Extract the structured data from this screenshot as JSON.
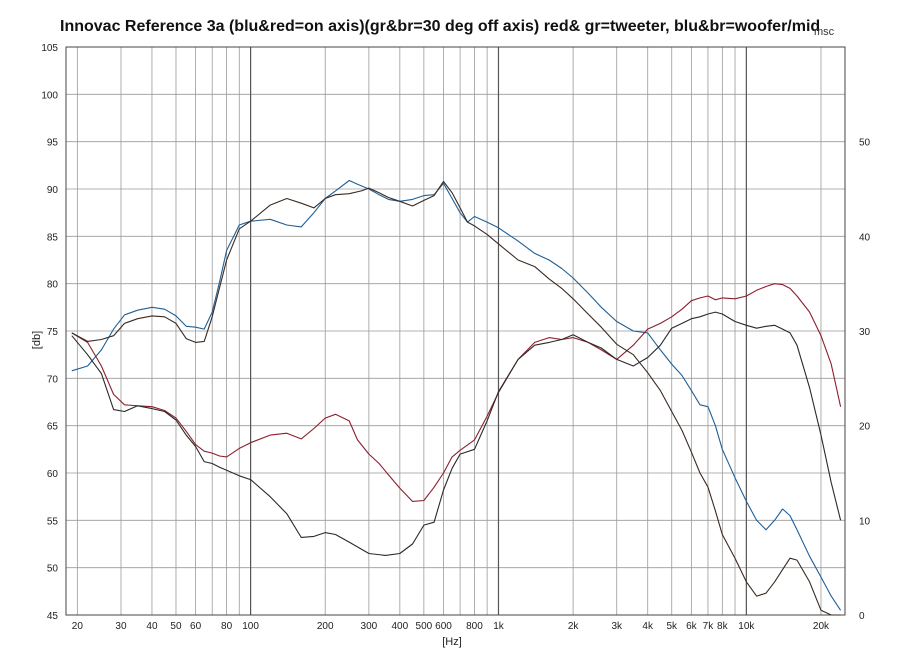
{
  "chart_data": {
    "type": "line",
    "title": "Innovac Reference 3a (blu&red=on axis)(gr&br=30 deg off axis) red& gr=tweeter, blu&br=woofer/mid",
    "title_tail": "msc",
    "xlabel": "[Hz]",
    "ylabel": "[db]",
    "x_scale": "log",
    "xlim": [
      18,
      25000
    ],
    "ylim": [
      45,
      105
    ],
    "y2lim": [
      0,
      60
    ],
    "grid": true,
    "y_ticks": [
      105,
      100,
      95,
      90,
      85,
      80,
      75,
      70,
      65,
      60,
      55,
      50,
      45
    ],
    "y2_ticks": [
      50,
      40,
      30,
      20,
      10,
      0
    ],
    "x_tick_values": [
      20,
      30,
      40,
      50,
      60,
      80,
      100,
      200,
      300,
      400,
      500,
      600,
      800,
      1000,
      2000,
      3000,
      4000,
      5000,
      6000,
      7000,
      8000,
      10000,
      20000
    ],
    "x_tick_labels": [
      "20",
      "30",
      "40",
      "50",
      "60",
      "80",
      "100",
      "200",
      "300",
      "400",
      "500",
      "600",
      "800",
      "1k",
      "2k",
      "3k",
      "4k",
      "5k",
      "6k",
      "7k",
      "8k",
      "10k",
      "20k"
    ],
    "colors": {
      "blue": "#1f5f96",
      "red": "#8c1f2c",
      "green": "#2a2a2a",
      "brown": "#3a2a22",
      "grid": "#9a9a9a"
    },
    "series": [
      {
        "color": "blue",
        "x": [
          19,
          22,
          25,
          28,
          31,
          35,
          40,
          45,
          50,
          55,
          60,
          65,
          70,
          75,
          80,
          90,
          100,
          120,
          140,
          160,
          180,
          200,
          220,
          250,
          270,
          300,
          330,
          360,
          400,
          450,
          500,
          550,
          600,
          650,
          700,
          750,
          800,
          900,
          1000,
          1200,
          1400,
          1600,
          1800,
          2000,
          2300,
          2600,
          3000,
          3500,
          4000,
          4500,
          5000,
          5500,
          6000,
          6500,
          7000,
          7500,
          8000,
          9000,
          10000,
          11000,
          12000,
          13000,
          14000,
          15000,
          16000,
          18000,
          20000,
          22000,
          24000
        ],
        "y": [
          70.8,
          71.3,
          73,
          75.2,
          76.7,
          77.2,
          77.5,
          77.3,
          76.6,
          75.5,
          75.4,
          75.2,
          77,
          80.2,
          83.5,
          86.2,
          86.6,
          86.8,
          86.2,
          86,
          87.5,
          89,
          89.8,
          90.9,
          90.5,
          90,
          89.4,
          88.9,
          88.7,
          88.9,
          89.3,
          89.4,
          90.6,
          89,
          87.5,
          86.5,
          87.1,
          86.5,
          85.9,
          84.5,
          83.2,
          82.5,
          81.6,
          80.6,
          79,
          77.5,
          76,
          75,
          74.8,
          73,
          71.5,
          70.3,
          68.7,
          67.2,
          67,
          65,
          62.5,
          59.5,
          57,
          55,
          54,
          55,
          56.2,
          55.5,
          54,
          51.2,
          49,
          47,
          45.5
        ]
      },
      {
        "color": "red",
        "x": [
          19,
          22,
          25,
          28,
          31,
          35,
          40,
          45,
          50,
          55,
          60,
          65,
          70,
          75,
          80,
          90,
          100,
          120,
          140,
          160,
          180,
          200,
          220,
          250,
          270,
          300,
          330,
          360,
          400,
          450,
          500,
          550,
          600,
          650,
          700,
          800,
          900,
          1000,
          1200,
          1400,
          1600,
          1800,
          2000,
          2300,
          2600,
          3000,
          3500,
          4000,
          4500,
          5000,
          5500,
          6000,
          6500,
          7000,
          7500,
          8000,
          9000,
          10000,
          11000,
          12000,
          13000,
          14000,
          15000,
          16000,
          18000,
          20000,
          22000,
          24000
        ],
        "y": [
          74.8,
          73.8,
          71.3,
          68.3,
          67.2,
          67.1,
          67,
          66.6,
          65.8,
          64.4,
          63,
          62.3,
          62.1,
          61.8,
          61.7,
          62.6,
          63.2,
          64,
          64.2,
          63.6,
          64.7,
          65.8,
          66.2,
          65.5,
          63.5,
          62,
          61,
          59.8,
          58.4,
          57,
          57.1,
          58.5,
          60,
          61.7,
          62.4,
          63.5,
          66,
          68.5,
          72,
          73.8,
          74.3,
          74.1,
          74.3,
          73.8,
          73,
          72,
          73.5,
          75.2,
          75.8,
          76.5,
          77.3,
          78.2,
          78.5,
          78.7,
          78.3,
          78.5,
          78.4,
          78.7,
          79.3,
          79.7,
          80,
          79.9,
          79.5,
          78.7,
          77,
          74.5,
          71.5,
          67
        ]
      },
      {
        "color": "green",
        "x": [
          19,
          22,
          25,
          28,
          31,
          35,
          40,
          45,
          50,
          55,
          60,
          65,
          70,
          75,
          80,
          90,
          100,
          120,
          140,
          160,
          180,
          200,
          220,
          250,
          300,
          350,
          400,
          450,
          500,
          550,
          600,
          650,
          700,
          800,
          900,
          1000,
          1200,
          1400,
          1600,
          1800,
          2000,
          2300,
          2600,
          3000,
          3500,
          4000,
          4500,
          5000,
          5500,
          6000,
          6500,
          7000,
          7500,
          8000,
          9000,
          10000,
          11000,
          12000,
          13000,
          14000,
          15000,
          16000,
          18000,
          20000,
          22000,
          24000
        ],
        "y": [
          74.5,
          72.5,
          70.5,
          66.7,
          66.5,
          67.1,
          66.8,
          66.5,
          65.6,
          64,
          62.8,
          61.2,
          61,
          60.6,
          60.3,
          59.7,
          59.3,
          57.5,
          55.7,
          53.2,
          53.3,
          53.7,
          53.5,
          52.7,
          51.5,
          51.3,
          51.5,
          52.5,
          54.5,
          54.8,
          58.2,
          60.5,
          62,
          62.5,
          65.5,
          68.6,
          72,
          73.5,
          73.8,
          74.1,
          74.6,
          73.8,
          73.2,
          72,
          71.3,
          72.2,
          73.5,
          75.3,
          75.8,
          76.3,
          76.5,
          76.8,
          77,
          76.8,
          76,
          75.6,
          75.3,
          75.5,
          75.6,
          75.2,
          74.8,
          73.5,
          69,
          64,
          59,
          55
        ]
      },
      {
        "color": "brown",
        "x": [
          19,
          22,
          25,
          28,
          31,
          35,
          40,
          45,
          50,
          55,
          60,
          65,
          70,
          75,
          80,
          90,
          100,
          120,
          140,
          160,
          180,
          200,
          220,
          250,
          280,
          300,
          330,
          360,
          400,
          450,
          500,
          550,
          600,
          650,
          700,
          750,
          800,
          900,
          1000,
          1200,
          1400,
          1600,
          1800,
          2000,
          2300,
          2600,
          3000,
          3500,
          4000,
          4500,
          5000,
          5500,
          6000,
          6500,
          7000,
          7500,
          8000,
          9000,
          10000,
          11000,
          12000,
          13000,
          14000,
          15000,
          16000,
          18000,
          20000,
          22000,
          24000
        ],
        "y": [
          74.8,
          73.9,
          74.1,
          74.5,
          75.8,
          76.3,
          76.6,
          76.5,
          75.8,
          74.2,
          73.8,
          73.9,
          76.5,
          79.6,
          82.5,
          85.8,
          86.6,
          88.3,
          89,
          88.5,
          88,
          89,
          89.4,
          89.5,
          89.8,
          90.1,
          89.6,
          89.1,
          88.7,
          88.2,
          88.8,
          89.3,
          90.8,
          89.6,
          88,
          86.5,
          86.1,
          85.2,
          84.2,
          82.5,
          81.8,
          80.5,
          79.5,
          78.4,
          76.8,
          75.4,
          73.6,
          72.5,
          70.6,
          68.7,
          66.5,
          64.5,
          62.2,
          60,
          58.5,
          56,
          53.5,
          51,
          48.5,
          47,
          47.3,
          48.5,
          49.8,
          51,
          50.8,
          48.5,
          45.5,
          42,
          40
        ]
      }
    ]
  }
}
